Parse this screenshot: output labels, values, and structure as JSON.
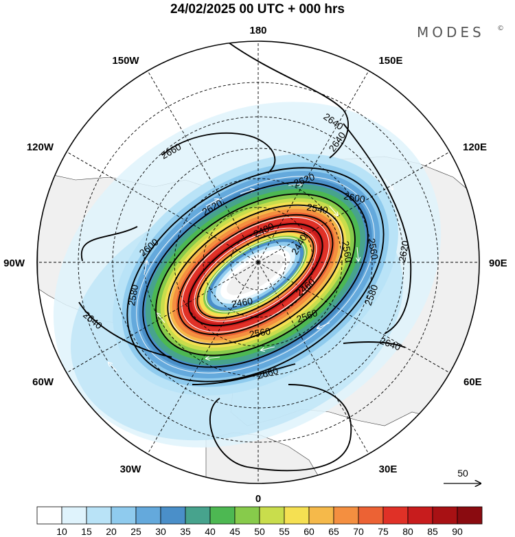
{
  "title": "24/02/2025  00 UTC  + 000 hrs",
  "brand": "MODES",
  "brand_mark": "©",
  "longitude_labels": {
    "lon_0": "0",
    "lon_30e": "30E",
    "lon_60e": "60E",
    "lon_90e": "90E",
    "lon_120e": "120E",
    "lon_150e": "150E",
    "lon_180": "180",
    "lon_150w": "150W",
    "lon_120w": "120W",
    "lon_90w": "90W",
    "lon_60w": "60W",
    "lon_30w": "30W"
  },
  "contour_labels": [
    "2640",
    "2640",
    "2660",
    "2620",
    "2600",
    "2620",
    "2600",
    "2580",
    "2540",
    "2480",
    "2440",
    "2560",
    "2560",
    "2620",
    "2580",
    "2460",
    "2460",
    "2560",
    "2560",
    "2640",
    "2640",
    "2660"
  ],
  "reference_vector": {
    "label": "50"
  },
  "colorbar": {
    "ticks": [
      "10",
      "15",
      "20",
      "25",
      "30",
      "35",
      "40",
      "45",
      "50",
      "55",
      "60",
      "65",
      "70",
      "75",
      "80",
      "85",
      "90"
    ],
    "colors": [
      "#ffffff",
      "#dff3fc",
      "#b9e3f7",
      "#8fcbee",
      "#64a9dc",
      "#4a8fc9",
      "#47a38d",
      "#4db852",
      "#87cb4b",
      "#c9dd4c",
      "#f5e052",
      "#f5b94a",
      "#f48f40",
      "#ec6234",
      "#e03127",
      "#c81c1d",
      "#a81114",
      "#8a0b10"
    ]
  }
}
